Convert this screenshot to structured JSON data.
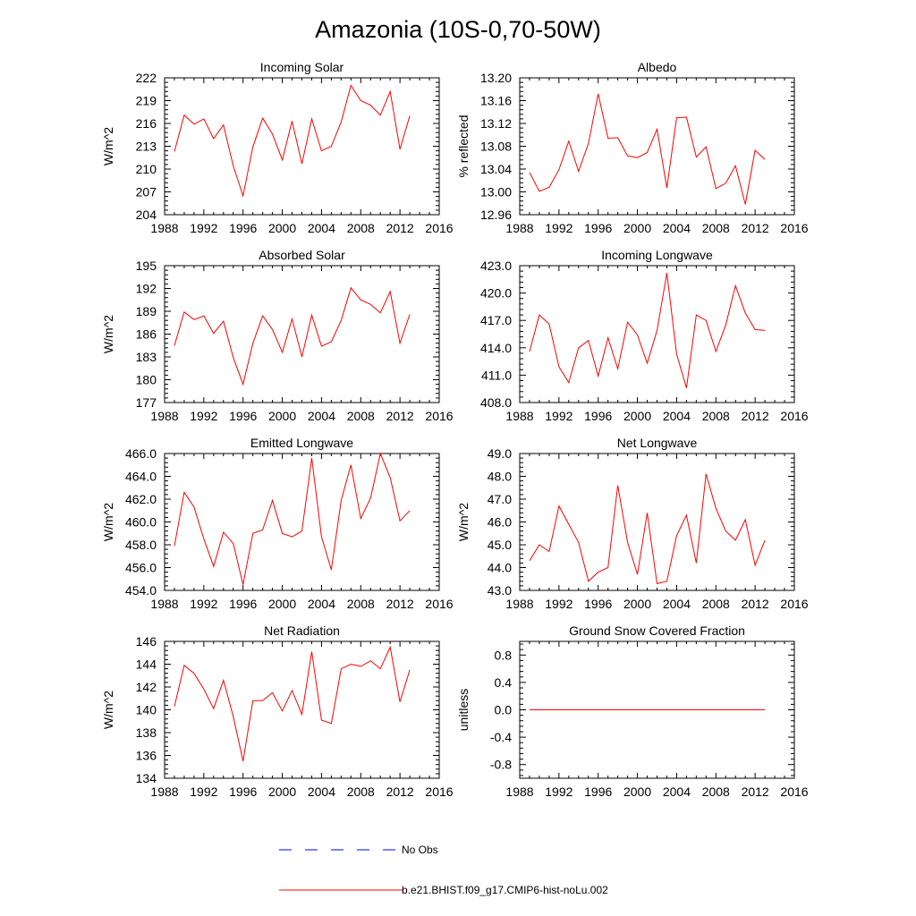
{
  "figure": {
    "title": "Amazonia (10S-0,70-50W)"
  },
  "legend": {
    "entries": [
      {
        "label": "No Obs",
        "color": "#0000ff",
        "style": "dashed"
      },
      {
        "label": "b.e21.BHIST.f09_g17.CMIP6-hist-noLu.002",
        "color": "#ff0000",
        "style": "solid"
      }
    ]
  },
  "chart_data": [
    {
      "type": "line",
      "title": "Incoming Solar",
      "ylabel": "W/m^2",
      "xlim": [
        1988,
        2016
      ],
      "ylim": [
        204,
        222
      ],
      "xticks": [
        "1988",
        "1992",
        "1996",
        "2000",
        "2004",
        "2008",
        "2012",
        "2016"
      ],
      "yticks": [
        "204",
        "207",
        "210",
        "213",
        "216",
        "219",
        "222"
      ],
      "series": [
        {
          "color": "#ff0000",
          "x": [
            1989,
            1990,
            1991,
            1992,
            1993,
            1994,
            1995,
            1996,
            1997,
            1998,
            1999,
            2000,
            2001,
            2002,
            2003,
            2004,
            2005,
            2006,
            2007,
            2008,
            2009,
            2010,
            2011,
            2012,
            2013
          ],
          "y": [
            212.3,
            217.1,
            215.9,
            216.6,
            214.0,
            215.8,
            210.4,
            206.5,
            212.9,
            216.7,
            214.6,
            211.2,
            216.3,
            210.7,
            216.6,
            212.4,
            213.0,
            216.2,
            221.0,
            219.0,
            218.4,
            217.1,
            220.2,
            212.6,
            217.0
          ]
        }
      ]
    },
    {
      "type": "line",
      "title": "Albedo",
      "ylabel": "% reflected",
      "xlim": [
        1988,
        2016
      ],
      "ylim": [
        12.96,
        13.2
      ],
      "xticks": [
        "1988",
        "1992",
        "1996",
        "2000",
        "2004",
        "2008",
        "2012",
        "2016"
      ],
      "yticks": [
        "12.96",
        "13.00",
        "13.04",
        "13.08",
        "13.12",
        "13.16",
        "13.20"
      ],
      "series": [
        {
          "color": "#ff0000",
          "x": [
            1989,
            1990,
            1991,
            1992,
            1993,
            1994,
            1995,
            1996,
            1997,
            1998,
            1999,
            2000,
            2001,
            2002,
            2003,
            2004,
            2005,
            2006,
            2007,
            2008,
            2009,
            2010,
            2011,
            2012,
            2013
          ],
          "y": [
            13.034,
            13.001,
            13.008,
            13.039,
            13.089,
            13.036,
            13.085,
            13.172,
            13.094,
            13.095,
            13.063,
            13.06,
            13.069,
            13.11,
            13.007,
            13.13,
            13.131,
            13.061,
            13.079,
            13.006,
            13.015,
            13.046,
            12.978,
            13.073,
            13.057
          ]
        }
      ]
    },
    {
      "type": "line",
      "title": "Absorbed Solar",
      "ylabel": "W/m^2",
      "xlim": [
        1988,
        2016
      ],
      "ylim": [
        177,
        195
      ],
      "xticks": [
        "1988",
        "1992",
        "1996",
        "2000",
        "2004",
        "2008",
        "2012",
        "2016"
      ],
      "yticks": [
        "177",
        "180",
        "183",
        "186",
        "189",
        "192",
        "195"
      ],
      "series": [
        {
          "color": "#ff0000",
          "x": [
            1989,
            1990,
            1991,
            1992,
            1993,
            1994,
            1995,
            1996,
            1997,
            1998,
            1999,
            2000,
            2001,
            2002,
            2003,
            2004,
            2005,
            2006,
            2007,
            2008,
            2009,
            2010,
            2011,
            2012,
            2013
          ],
          "y": [
            184.5,
            188.9,
            187.9,
            188.4,
            186.1,
            187.7,
            182.9,
            179.4,
            184.8,
            188.4,
            186.6,
            183.6,
            188.0,
            183.0,
            188.5,
            184.4,
            185.0,
            187.8,
            192.1,
            190.5,
            189.9,
            188.8,
            191.6,
            184.8,
            188.6
          ]
        }
      ]
    },
    {
      "type": "line",
      "title": "Incoming Longwave",
      "ylabel": "",
      "xlim": [
        1988,
        2016
      ],
      "ylim": [
        408.0,
        423.0
      ],
      "xticks": [
        "1988",
        "1992",
        "1996",
        "2000",
        "2004",
        "2008",
        "2012",
        "2016"
      ],
      "yticks": [
        "408.0",
        "411.0",
        "414.0",
        "417.0",
        "420.0",
        "423.0"
      ],
      "series": [
        {
          "color": "#ff0000",
          "x": [
            1989,
            1990,
            1991,
            1992,
            1993,
            1994,
            1995,
            1996,
            1997,
            1998,
            1999,
            2000,
            2001,
            2002,
            2003,
            2004,
            2005,
            2006,
            2007,
            2008,
            2009,
            2010,
            2011,
            2012,
            2013
          ],
          "y": [
            413.6,
            417.6,
            416.6,
            411.9,
            410.2,
            414.0,
            414.8,
            410.9,
            415.1,
            411.7,
            416.8,
            415.4,
            412.3,
            415.9,
            422.2,
            413.3,
            409.6,
            417.6,
            417.0,
            413.6,
            416.5,
            420.8,
            417.8,
            416.0,
            415.9
          ]
        }
      ]
    },
    {
      "type": "line",
      "title": "Emitted Longwave",
      "ylabel": "W/m^2",
      "xlim": [
        1988,
        2016
      ],
      "ylim": [
        454.0,
        466.0
      ],
      "xticks": [
        "1988",
        "1992",
        "1996",
        "2000",
        "2004",
        "2008",
        "2012",
        "2016"
      ],
      "yticks": [
        "454.0",
        "456.0",
        "458.0",
        "460.0",
        "462.0",
        "464.0",
        "466.0"
      ],
      "series": [
        {
          "color": "#ff0000",
          "x": [
            1989,
            1990,
            1991,
            1992,
            1993,
            1994,
            1995,
            1996,
            1997,
            1998,
            1999,
            2000,
            2001,
            2002,
            2003,
            2004,
            2005,
            2006,
            2007,
            2008,
            2009,
            2010,
            2011,
            2012,
            2013
          ],
          "y": [
            457.9,
            462.6,
            461.3,
            458.5,
            456.1,
            459.1,
            458.1,
            454.5,
            459.0,
            459.3,
            461.9,
            459.0,
            458.7,
            459.2,
            465.6,
            458.7,
            455.8,
            461.9,
            465.0,
            460.3,
            462.1,
            466.0,
            463.9,
            460.1,
            461.0
          ]
        }
      ]
    },
    {
      "type": "line",
      "title": "Net Longwave",
      "ylabel": "W/m^2",
      "xlim": [
        1988,
        2016
      ],
      "ylim": [
        43.0,
        49.0
      ],
      "xticks": [
        "1988",
        "1992",
        "1996",
        "2000",
        "2004",
        "2008",
        "2012",
        "2016"
      ],
      "yticks": [
        "43.0",
        "44.0",
        "45.0",
        "46.0",
        "47.0",
        "48.0",
        "49.0"
      ],
      "series": [
        {
          "color": "#ff0000",
          "x": [
            1989,
            1990,
            1991,
            1992,
            1993,
            1994,
            1995,
            1996,
            1997,
            1998,
            1999,
            2000,
            2001,
            2002,
            2003,
            2004,
            2005,
            2006,
            2007,
            2008,
            2009,
            2010,
            2011,
            2012,
            2013
          ],
          "y": [
            44.3,
            45.0,
            44.7,
            46.7,
            45.9,
            45.1,
            43.4,
            43.8,
            44.0,
            47.6,
            45.1,
            43.7,
            46.4,
            43.3,
            43.4,
            45.4,
            46.3,
            44.2,
            48.1,
            46.6,
            45.6,
            45.2,
            46.1,
            44.1,
            45.2
          ]
        }
      ]
    },
    {
      "type": "line",
      "title": "Net Radiation",
      "ylabel": "W/m^2",
      "xlim": [
        1988,
        2016
      ],
      "ylim": [
        134,
        146
      ],
      "xticks": [
        "1988",
        "1992",
        "1996",
        "2000",
        "2004",
        "2008",
        "2012",
        "2016"
      ],
      "yticks": [
        "134",
        "136",
        "138",
        "140",
        "142",
        "144",
        "146"
      ],
      "series": [
        {
          "color": "#ff0000",
          "x": [
            1989,
            1990,
            1991,
            1992,
            1993,
            1994,
            1995,
            1996,
            1997,
            1998,
            1999,
            2000,
            2001,
            2002,
            2003,
            2004,
            2005,
            2006,
            2007,
            2008,
            2009,
            2010,
            2011,
            2012,
            2013
          ],
          "y": [
            140.3,
            143.9,
            143.2,
            141.8,
            140.1,
            142.6,
            139.4,
            135.5,
            140.8,
            140.8,
            141.5,
            139.9,
            141.7,
            139.6,
            145.1,
            139.1,
            138.8,
            143.6,
            144.0,
            143.8,
            144.3,
            143.6,
            145.5,
            140.7,
            143.5
          ]
        }
      ]
    },
    {
      "type": "line",
      "title": "Ground Snow Covered Fraction",
      "ylabel": "unitless",
      "xlim": [
        1988,
        2016
      ],
      "ylim": [
        -1.0,
        1.0
      ],
      "xticks": [
        "1988",
        "1992",
        "1996",
        "2000",
        "2004",
        "2008",
        "2012",
        "2016"
      ],
      "yticks": [
        "-0.8",
        "-0.4",
        "0.0",
        "0.4",
        "0.8"
      ],
      "ytick_values": [
        -0.8,
        -0.4,
        0.0,
        0.4,
        0.8
      ],
      "series": [
        {
          "color": "#ff0000",
          "x": [
            1989,
            1990,
            1991,
            1992,
            1993,
            1994,
            1995,
            1996,
            1997,
            1998,
            1999,
            2000,
            2001,
            2002,
            2003,
            2004,
            2005,
            2006,
            2007,
            2008,
            2009,
            2010,
            2011,
            2012,
            2013
          ],
          "y": [
            0,
            0,
            0,
            0,
            0,
            0,
            0,
            0,
            0,
            0,
            0,
            0,
            0,
            0,
            0,
            0,
            0,
            0,
            0,
            0,
            0,
            0,
            0,
            0,
            0
          ]
        }
      ]
    }
  ]
}
